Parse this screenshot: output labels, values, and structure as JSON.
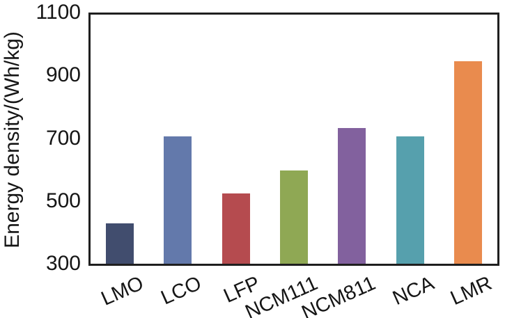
{
  "figure": {
    "background": "#ffffff",
    "axis_color": "#1f1f1f",
    "text_color": "#151515"
  },
  "chart_data": {
    "type": "bar",
    "title": "",
    "xlabel": "",
    "ylabel": "Energy density/(Wh/kg)",
    "categories": [
      "LMO",
      "LCO",
      "LFP",
      "NCM111",
      "NCM811",
      "NCA",
      "LMR"
    ],
    "values": [
      430,
      710,
      525,
      600,
      735,
      710,
      950
    ],
    "bar_colors": [
      "#414d6e",
      "#6379ab",
      "#b54b4f",
      "#8fa854",
      "#82619e",
      "#56a0ad",
      "#e98b4e"
    ],
    "ylim": [
      300,
      1100
    ],
    "yticks": [
      1100,
      900,
      700,
      500,
      300
    ],
    "grid": false,
    "legend": false,
    "x_label_rotation_deg": -24
  }
}
